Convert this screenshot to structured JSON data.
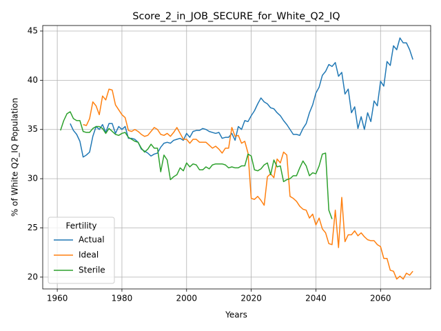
{
  "chart_data": {
    "type": "line",
    "title": "Score_2_in_JOB_SECURE_for_White_Q2_IQ",
    "xlabel": "Years",
    "ylabel": "% of White Q2_IQ Population",
    "legend_title": "Fertility",
    "legend_loc": "lower left",
    "grid": true,
    "xlim": [
      1955.5,
      2075.5
    ],
    "ylim": [
      18.8,
      45.56
    ],
    "xticks": [
      1960,
      1980,
      2000,
      2020,
      2040,
      2060
    ],
    "yticks": [
      20,
      25,
      30,
      35,
      40,
      45
    ],
    "x": [
      1961,
      1962,
      1963,
      1964,
      1965,
      1966,
      1967,
      1968,
      1969,
      1970,
      1971,
      1972,
      1973,
      1974,
      1975,
      1976,
      1977,
      1978,
      1979,
      1980,
      1981,
      1982,
      1983,
      1984,
      1985,
      1986,
      1987,
      1988,
      1989,
      1990,
      1991,
      1992,
      1993,
      1994,
      1995,
      1996,
      1997,
      1998,
      1999,
      2000,
      2001,
      2002,
      2003,
      2004,
      2005,
      2006,
      2007,
      2008,
      2009,
      2010,
      2011,
      2012,
      2013,
      2014,
      2015,
      2016,
      2017,
      2018,
      2019,
      2020,
      2021,
      2022,
      2023,
      2024,
      2025,
      2026,
      2027,
      2028,
      2029,
      2030,
      2031,
      2032,
      2033,
      2034,
      2035,
      2036,
      2037,
      2038,
      2039,
      2040,
      2041,
      2042,
      2043,
      2044,
      2045,
      2046,
      2047,
      2048,
      2049,
      2050,
      2051,
      2052,
      2053,
      2054,
      2055,
      2056,
      2057,
      2058,
      2059,
      2060,
      2061,
      2062,
      2063,
      2064,
      2065,
      2066,
      2067,
      2068,
      2069,
      2070
    ],
    "series": [
      {
        "name": "Actual",
        "color": "#1f77b4",
        "values": [
          null,
          null,
          null,
          35.6,
          34.9,
          34.5,
          33.8,
          32.2,
          32.4,
          32.7,
          34.3,
          35.3,
          35.0,
          35.5,
          34.7,
          35.6,
          35.6,
          34.6,
          35.3,
          35.0,
          35.3,
          34.1,
          34.1,
          34.0,
          33.7,
          33.0,
          32.8,
          32.6,
          32.3,
          32.5,
          32.6,
          33.2,
          33.6,
          33.7,
          33.6,
          33.9,
          34.0,
          34.1,
          33.9,
          34.6,
          34.2,
          34.8,
          34.9,
          34.9,
          35.1,
          35.0,
          34.8,
          34.7,
          34.6,
          34.7,
          34.1,
          34.2,
          34.2,
          34.6,
          33.9,
          35.3,
          35.0,
          35.9,
          35.8,
          36.4,
          36.9,
          37.6,
          38.2,
          37.8,
          37.6,
          37.2,
          37.1,
          36.7,
          36.4,
          35.9,
          35.5,
          35.0,
          34.5,
          34.5,
          34.4,
          35.1,
          35.6,
          36.7,
          37.5,
          38.7,
          39.3,
          40.5,
          40.9,
          41.6,
          41.4,
          41.8,
          40.4,
          40.8,
          38.6,
          39.1,
          36.7,
          37.3,
          35.1,
          36.3,
          35.0,
          36.7,
          35.8,
          37.9,
          37.4,
          39.9,
          39.4,
          41.9,
          41.5,
          43.5,
          43.1,
          44.3,
          43.8,
          43.8,
          43.1,
          42.1
        ]
      },
      {
        "name": "Ideal",
        "color": "#ff7f0e",
        "values": [
          null,
          null,
          null,
          null,
          null,
          null,
          null,
          35.5,
          35.4,
          36.1,
          37.8,
          37.4,
          36.5,
          38.4,
          38.0,
          39.1,
          39.0,
          37.5,
          37.0,
          36.5,
          36.2,
          34.9,
          34.8,
          35.0,
          34.8,
          34.5,
          34.3,
          34.4,
          34.8,
          35.2,
          35.0,
          34.5,
          34.4,
          34.6,
          34.3,
          34.7,
          35.2,
          34.6,
          34.0,
          34.0,
          33.6,
          34.0,
          34.0,
          33.7,
          33.7,
          33.7,
          33.4,
          33.1,
          33.3,
          33.0,
          32.6,
          33.1,
          33.1,
          35.2,
          34.3,
          34.4,
          33.6,
          33.8,
          32.6,
          28.0,
          27.9,
          28.2,
          27.8,
          27.3,
          30.2,
          30.5,
          30.1,
          32.0,
          31.6,
          32.7,
          32.4,
          28.2,
          28.0,
          27.7,
          27.2,
          26.9,
          26.8,
          26.0,
          26.4,
          25.3,
          26.0,
          24.9,
          24.5,
          23.4,
          23.3,
          26.8,
          23.0,
          28.1,
          23.6,
          24.3,
          24.3,
          24.7,
          24.2,
          24.5,
          24.1,
          23.8,
          23.7,
          23.7,
          23.3,
          23.1,
          21.9,
          21.9,
          20.7,
          20.6,
          19.8,
          20.1,
          19.8,
          20.4,
          20.2,
          20.6
        ]
      },
      {
        "name": "Sterile",
        "color": "#2ca02c",
        "values": [
          34.9,
          35.9,
          36.6,
          36.8,
          36.1,
          35.9,
          35.9,
          34.8,
          34.7,
          34.7,
          35.1,
          35.3,
          35.3,
          35.1,
          34.6,
          35.1,
          34.8,
          34.5,
          34.4,
          34.6,
          34.7,
          34.2,
          34.0,
          33.8,
          33.7,
          33.1,
          32.7,
          33.0,
          33.5,
          33.1,
          33.1,
          30.7,
          32.4,
          31.9,
          29.9,
          30.2,
          30.4,
          31.1,
          30.8,
          31.6,
          31.2,
          31.5,
          31.4,
          30.9,
          30.9,
          31.2,
          31.0,
          31.4,
          31.5,
          31.5,
          31.5,
          31.4,
          31.1,
          31.2,
          31.1,
          31.1,
          31.3,
          31.3,
          32.5,
          32.3,
          30.9,
          30.8,
          31.0,
          31.4,
          31.6,
          30.4,
          31.9,
          31.2,
          31.3,
          29.7,
          29.9,
          30.0,
          30.3,
          30.3,
          31.1,
          31.8,
          31.3,
          30.3,
          30.6,
          30.5,
          31.3,
          32.5,
          32.6,
          26.8,
          25.9,
          null,
          null,
          null,
          null,
          null,
          null,
          null,
          null,
          null,
          null,
          null,
          null,
          null,
          null,
          null,
          null,
          null,
          null,
          null,
          null,
          null,
          null,
          null,
          null,
          null
        ]
      }
    ]
  }
}
